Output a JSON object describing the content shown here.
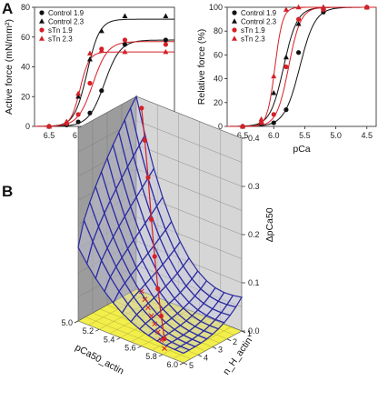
{
  "panels": {
    "a": "A",
    "b": "B"
  },
  "colors": {
    "control": "#111111",
    "stn": "#d42027",
    "mesh": "#2b2ba0",
    "floor": "#f2ee4a",
    "wall": "#9c9c9c",
    "wall_right": "#d6d6d6"
  },
  "chart_data": [
    {
      "type": "scatter",
      "xlabel": "pCa",
      "ylabel": "Active force (mN/mm²)",
      "xlim": [
        6.75,
        4.35
      ],
      "ylim": [
        0,
        80
      ],
      "x_reversed": true,
      "xticks": [
        "6.5",
        "6.0",
        "5.5",
        "5.0",
        "4.5"
      ],
      "yticks": [
        "0",
        "20",
        "40",
        "60",
        "80"
      ],
      "legend_position": "top-left",
      "series": [
        {
          "name": "Control 1.9",
          "marker": "circle",
          "color": "#111111",
          "x": [
            6.5,
            6.2,
            6.0,
            5.8,
            5.6,
            5.2,
            4.5
          ],
          "y": [
            0,
            1,
            3,
            9,
            24,
            55,
            58
          ]
        },
        {
          "name": "Control 2.3",
          "marker": "triangle",
          "color": "#111111",
          "x": [
            6.5,
            6.2,
            6.0,
            5.8,
            5.6,
            5.2,
            4.5
          ],
          "y": [
            0,
            3,
            20,
            45,
            64,
            74,
            74
          ]
        },
        {
          "name": "sTn 1.9",
          "marker": "circle",
          "color": "#d42027",
          "x": [
            6.5,
            6.2,
            6.0,
            5.8,
            5.6,
            5.2,
            4.5
          ],
          "y": [
            0,
            2,
            8,
            29,
            52,
            58,
            55
          ]
        },
        {
          "name": "sTn 2.3",
          "marker": "triangle",
          "color": "#d42027",
          "x": [
            6.5,
            6.2,
            6.0,
            5.8,
            5.6,
            5.2,
            4.5
          ],
          "y": [
            0,
            3,
            22,
            49,
            51,
            50,
            50
          ]
        }
      ],
      "fits": [
        {
          "series": "Control 1.9",
          "color": "#111111",
          "fmax": 58,
          "pca50": 5.55,
          "nh": 3.2
        },
        {
          "series": "Control 2.3",
          "color": "#111111",
          "fmax": 72,
          "pca50": 5.85,
          "nh": 4.0
        },
        {
          "series": "sTn 1.9",
          "color": "#d42027",
          "fmax": 57,
          "pca50": 5.75,
          "nh": 3.4
        },
        {
          "series": "sTn 2.3",
          "color": "#d42027",
          "fmax": 50,
          "pca50": 5.97,
          "nh": 5.5
        }
      ]
    },
    {
      "type": "scatter",
      "xlabel": "pCa",
      "ylabel": "Relative force (%)",
      "xlim": [
        6.75,
        4.35
      ],
      "ylim": [
        0,
        100
      ],
      "x_reversed": true,
      "xticks": [
        "6.5",
        "6.0",
        "5.5",
        "5.0",
        "4.5"
      ],
      "yticks": [
        "0",
        "20",
        "40",
        "60",
        "80",
        "100"
      ],
      "legend_position": "top-left",
      "series": [
        {
          "name": "Control 1.9",
          "marker": "circle",
          "color": "#111111",
          "x": [
            6.5,
            6.2,
            6.0,
            5.8,
            5.6,
            5.2,
            4.5
          ],
          "y": [
            0,
            2,
            3,
            14,
            62,
            96,
            100
          ]
        },
        {
          "name": "Control 2.3",
          "marker": "triangle",
          "color": "#111111",
          "x": [
            6.5,
            6.2,
            6.0,
            5.8,
            5.6,
            5.2,
            4.5
          ],
          "y": [
            0,
            4,
            28,
            58,
            86,
            100,
            100
          ]
        },
        {
          "name": "sTn 1.9",
          "marker": "circle",
          "color": "#d42027",
          "x": [
            6.5,
            6.2,
            6.0,
            5.8,
            5.6,
            5.2,
            4.5
          ],
          "y": [
            0,
            3,
            10,
            50,
            90,
            98,
            100
          ]
        },
        {
          "name": "sTn 2.3",
          "marker": "triangle",
          "color": "#d42027",
          "x": [
            6.5,
            6.2,
            6.0,
            5.8,
            5.6,
            5.2,
            4.5
          ],
          "y": [
            0,
            6,
            42,
            98,
            100,
            100,
            100
          ]
        }
      ],
      "fits": [
        {
          "series": "Control 1.9",
          "color": "#111111",
          "fmax": 100,
          "pca50": 5.58,
          "nh": 3.5
        },
        {
          "series": "Control 2.3",
          "color": "#111111",
          "fmax": 100,
          "pca50": 5.84,
          "nh": 4.0
        },
        {
          "series": "sTn 1.9",
          "color": "#d42027",
          "fmax": 100,
          "pca50": 5.76,
          "nh": 4.5
        },
        {
          "series": "sTn 2.3",
          "color": "#d42027",
          "fmax": 100,
          "pca50": 5.98,
          "nh": 7.0
        }
      ]
    },
    {
      "type": "surface3d",
      "xlabel": "pCa50_actin",
      "ylabel": "n_H_actin",
      "zlabel": "ΔpCa50",
      "xlim": [
        5.0,
        6.0
      ],
      "ylim": [
        1,
        5
      ],
      "zlim": [
        0,
        0.4
      ],
      "xticks": [
        "5.0",
        "5.2",
        "5.4",
        "5.6",
        "5.8",
        "6.0"
      ],
      "yticks": [
        "1",
        "2",
        "3",
        "4",
        "5"
      ],
      "zticks": [
        "0.0",
        "0.1",
        "0.2",
        "0.3",
        "0.4"
      ],
      "trajectory_points": [
        {
          "x": 5.05,
          "y": 1.0,
          "z": 0.38
        },
        {
          "x": 5.15,
          "y": 1.5,
          "z": 0.33
        },
        {
          "x": 5.25,
          "y": 2.0,
          "z": 0.27
        },
        {
          "x": 5.35,
          "y": 2.5,
          "z": 0.2
        },
        {
          "x": 5.45,
          "y": 3.0,
          "z": 0.14
        },
        {
          "x": 5.55,
          "y": 3.5,
          "z": 0.09
        },
        {
          "x": 5.65,
          "y": 4.0,
          "z": 0.05
        },
        {
          "x": 5.75,
          "y": 4.5,
          "z": 0.02
        }
      ]
    }
  ]
}
